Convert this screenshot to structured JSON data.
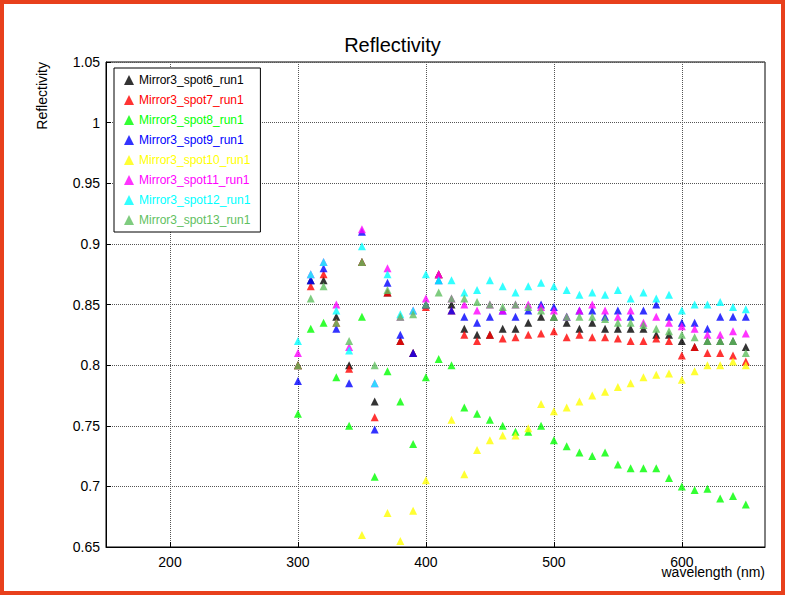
{
  "chart_data": {
    "type": "scatter",
    "title": "Reflectivity",
    "x_label": "wavelength (nm)",
    "y_label": "Reflectivity",
    "xlim": [
      150,
      665
    ],
    "xticks": [
      200,
      300,
      400,
      500,
      600
    ],
    "ylim": [
      0.65,
      1.05
    ],
    "yticks": [
      0.65,
      0.7,
      0.75,
      0.8,
      0.85,
      0.9,
      0.95,
      1,
      1.05
    ],
    "grid": true,
    "legend": "top-left",
    "marker": "triangle",
    "x": [
      300,
      310,
      320,
      330,
      340,
      350,
      360,
      370,
      380,
      390,
      400,
      410,
      420,
      430,
      440,
      450,
      460,
      470,
      480,
      490,
      500,
      510,
      520,
      530,
      540,
      550,
      560,
      570,
      580,
      590,
      600,
      610,
      620,
      630,
      640,
      650
    ],
    "series": [
      {
        "name": "Mirror3_spot6_run1",
        "color": "#000000",
        "values": [
          0.8,
          0.87,
          0.87,
          0.84,
          0.8,
          0.885,
          0.77,
          0.86,
          0.82,
          0.81,
          0.85,
          0.875,
          0.85,
          0.83,
          0.825,
          0.825,
          0.83,
          0.83,
          0.835,
          0.84,
          0.84,
          0.835,
          0.83,
          0.835,
          0.83,
          0.83,
          0.83,
          0.83,
          0.825,
          0.825,
          0.82,
          0.815,
          0.82,
          0.82,
          0.82,
          0.815
        ]
      },
      {
        "name": "Mirror3_spot7_run1",
        "color": "#ff0000",
        "values": [
          0.8,
          0.865,
          0.875,
          0.835,
          0.797,
          0.885,
          0.757,
          0.86,
          0.82,
          0.81,
          0.848,
          0.875,
          0.845,
          0.825,
          0.82,
          0.825,
          0.822,
          0.823,
          0.825,
          0.826,
          0.828,
          0.823,
          0.825,
          0.823,
          0.823,
          0.822,
          0.82,
          0.82,
          0.822,
          0.82,
          0.808,
          0.815,
          0.81,
          0.81,
          0.808,
          0.803
        ]
      },
      {
        "name": "Mirror3_spot8_run1",
        "color": "#00ff00",
        "values": [
          0.76,
          0.83,
          0.835,
          0.79,
          0.75,
          0.84,
          0.708,
          0.795,
          0.77,
          0.735,
          0.79,
          0.805,
          0.8,
          0.765,
          0.76,
          0.755,
          0.75,
          0.745,
          0.745,
          0.75,
          0.738,
          0.733,
          0.728,
          0.725,
          0.728,
          0.718,
          0.715,
          0.715,
          0.715,
          0.707,
          0.7,
          0.697,
          0.698,
          0.69,
          0.692,
          0.685
        ]
      },
      {
        "name": "Mirror3_spot9_run1",
        "color": "#0000ff",
        "values": [
          0.787,
          0.87,
          0.88,
          0.83,
          0.785,
          0.91,
          0.747,
          0.868,
          0.825,
          0.81,
          0.85,
          0.87,
          0.845,
          0.84,
          0.835,
          0.84,
          0.845,
          0.84,
          0.845,
          0.85,
          0.848,
          0.84,
          0.845,
          0.845,
          0.84,
          0.845,
          0.84,
          0.845,
          0.85,
          0.84,
          0.835,
          0.835,
          0.83,
          0.84,
          0.84,
          0.84
        ]
      },
      {
        "name": "Mirror3_spot10_run1",
        "color": "#ffff00",
        "values": [
          null,
          null,
          null,
          null,
          null,
          0.66,
          null,
          0.678,
          0.655,
          0.68,
          0.705,
          null,
          0.755,
          0.71,
          0.73,
          0.738,
          0.742,
          0.742,
          0.748,
          0.768,
          0.762,
          0.765,
          0.77,
          0.775,
          0.778,
          0.782,
          0.785,
          0.79,
          0.792,
          0.793,
          0.788,
          0.795,
          0.8,
          0.8,
          0.803,
          0.8
        ]
      },
      {
        "name": "Mirror3_spot11_run1",
        "color": "#ff00ff",
        "values": [
          0.81,
          0.875,
          0.885,
          0.85,
          0.815,
          0.912,
          0.785,
          0.88,
          0.84,
          0.845,
          0.855,
          0.875,
          0.855,
          0.85,
          0.845,
          0.85,
          0.845,
          0.85,
          0.85,
          0.848,
          0.845,
          0.84,
          0.845,
          0.85,
          0.845,
          0.84,
          0.845,
          0.835,
          0.84,
          0.835,
          0.832,
          0.83,
          0.825,
          0.825,
          0.828,
          0.826
        ]
      },
      {
        "name": "Mirror3_spot12_run1",
        "color": "#00ffff",
        "values": [
          0.82,
          0.875,
          0.885,
          0.845,
          0.812,
          0.898,
          0.785,
          0.875,
          0.842,
          0.845,
          0.875,
          0.87,
          0.87,
          0.86,
          0.862,
          0.87,
          0.865,
          0.86,
          0.865,
          0.868,
          0.865,
          0.862,
          0.858,
          0.86,
          0.858,
          0.862,
          0.855,
          0.86,
          0.855,
          0.858,
          0.845,
          0.85,
          0.85,
          0.852,
          0.848,
          0.846
        ]
      },
      {
        "name": "Mirror3_spot13_run1",
        "color": "#5fbf5f",
        "values": [
          0.8,
          0.855,
          0.865,
          0.835,
          0.82,
          0.885,
          0.8,
          0.862,
          0.84,
          0.842,
          0.85,
          0.86,
          0.855,
          0.855,
          0.852,
          0.85,
          0.848,
          0.85,
          0.848,
          0.845,
          0.84,
          0.84,
          0.84,
          0.84,
          0.838,
          0.835,
          0.835,
          0.833,
          0.83,
          0.828,
          0.825,
          0.823,
          0.82,
          0.82,
          0.82,
          0.81
        ]
      }
    ]
  }
}
